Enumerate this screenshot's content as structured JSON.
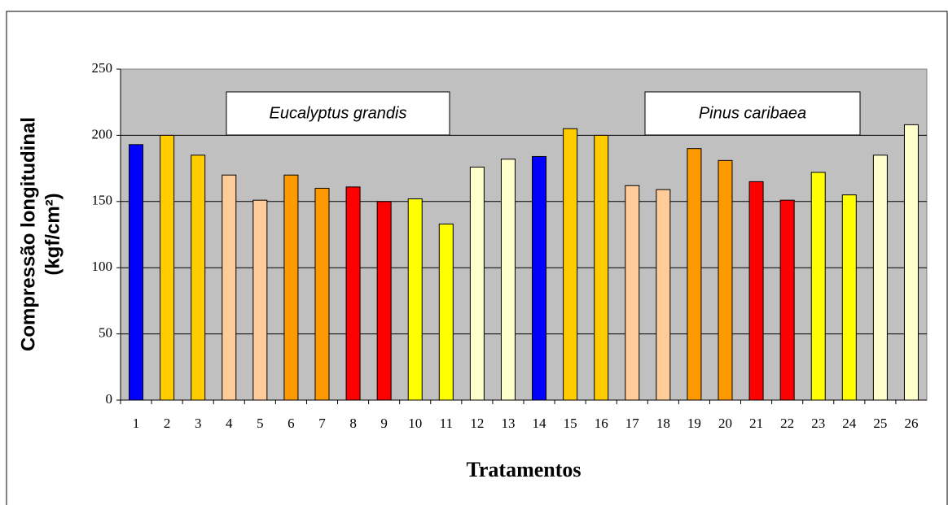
{
  "chart_data": {
    "type": "bar",
    "ylabel": [
      "Compressão longitudinal",
      "(kgf/cm²)"
    ],
    "xlabel": "Tratamentos",
    "annotations": [
      "Eucalyptus grandis",
      "Pinus caribaea"
    ],
    "categories": [
      "1",
      "2",
      "3",
      "4",
      "5",
      "6",
      "7",
      "8",
      "9",
      "10",
      "11",
      "12",
      "13",
      "14",
      "15",
      "16",
      "17",
      "18",
      "19",
      "20",
      "21",
      "22",
      "23",
      "24",
      "25",
      "26"
    ],
    "values": [
      193,
      200,
      185,
      170,
      151,
      170,
      160,
      161,
      150,
      152,
      133,
      176,
      182,
      184,
      205,
      200,
      162,
      159,
      190,
      181,
      165,
      151,
      172,
      155,
      185,
      208
    ],
    "colors": [
      "#0000ff",
      "#ffcc00",
      "#ffcc00",
      "#ffcc99",
      "#ffcc99",
      "#ff9900",
      "#ff9900",
      "#ff0000",
      "#ff0000",
      "#ffff00",
      "#ffff00",
      "#ffffcc",
      "#ffffcc",
      "#0000ff",
      "#ffcc00",
      "#ffcc00",
      "#ffcc99",
      "#ffcc99",
      "#ff9900",
      "#ff9900",
      "#ff0000",
      "#ff0000",
      "#ffff00",
      "#ffff00",
      "#ffffcc",
      "#ffffcc"
    ],
    "ylim": [
      0,
      250
    ],
    "yticks": [
      0,
      50,
      100,
      150,
      200,
      250
    ],
    "grid": true
  }
}
